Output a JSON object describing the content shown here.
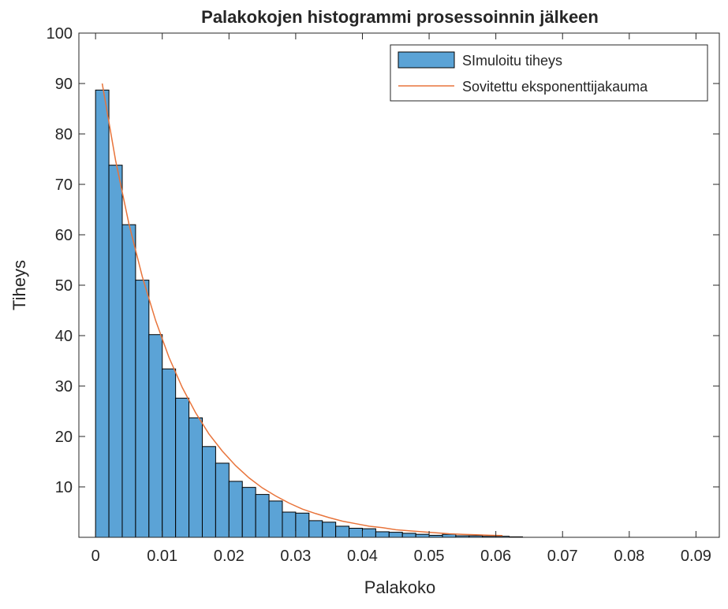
{
  "chart_data": {
    "type": "bar",
    "title": "Palakokojen histogrammi prosessoinnin jälkeen",
    "xlabel": "Palakoko",
    "ylabel": "Tiheys",
    "xlim": [
      -0.0025,
      0.0935
    ],
    "ylim": [
      0,
      100
    ],
    "bin_width": 0.002,
    "x_tick_labels": [
      "0",
      "0.01",
      "0.02",
      "0.03",
      "0.04",
      "0.05",
      "0.06",
      "0.07",
      "0.08",
      "0.09"
    ],
    "x_tick_values": [
      0,
      0.01,
      0.02,
      0.03,
      0.04,
      0.05,
      0.06,
      0.07,
      0.08,
      0.09
    ],
    "y_tick_labels": [
      "10",
      "20",
      "30",
      "40",
      "50",
      "60",
      "70",
      "80",
      "90",
      "100"
    ],
    "y_tick_values": [
      10,
      20,
      30,
      40,
      50,
      60,
      70,
      80,
      90,
      100
    ],
    "grid": false,
    "legend_position": "top-right",
    "series": [
      {
        "name": "SImuloitu tiheys",
        "kind": "histogram",
        "bin_edges": [
          0,
          0.002,
          0.004,
          0.006,
          0.008,
          0.01,
          0.012,
          0.014,
          0.016,
          0.018,
          0.02,
          0.022,
          0.024,
          0.026,
          0.028,
          0.03,
          0.032,
          0.034,
          0.036,
          0.038,
          0.04,
          0.042,
          0.044,
          0.046,
          0.048,
          0.05,
          0.052,
          0.054,
          0.056,
          0.058,
          0.06,
          0.062,
          0.064
        ],
        "values": [
          88.7,
          73.8,
          62.0,
          51.0,
          40.2,
          33.4,
          27.6,
          23.7,
          18.0,
          14.7,
          11.1,
          9.9,
          8.5,
          7.2,
          5.0,
          4.8,
          3.3,
          3.0,
          2.2,
          1.8,
          1.7,
          1.1,
          1.0,
          0.8,
          0.6,
          0.4,
          0.6,
          0.3,
          0.3,
          0.2,
          0.2,
          0.1
        ],
        "color": "#5ba3d6",
        "edge_color": "#000000"
      },
      {
        "name": "Sovitettu  eksponenttijakauma",
        "kind": "line",
        "x": [
          0.001,
          0.003,
          0.005,
          0.007,
          0.009,
          0.011,
          0.013,
          0.015,
          0.017,
          0.019,
          0.021,
          0.023,
          0.025,
          0.027,
          0.029,
          0.031,
          0.033,
          0.035,
          0.037,
          0.039,
          0.041,
          0.043,
          0.045,
          0.047,
          0.049,
          0.051,
          0.053,
          0.055,
          0.057,
          0.059,
          0.061
        ],
        "y": [
          90.0,
          74.8,
          62.2,
          51.7,
          43.0,
          35.7,
          29.7,
          24.7,
          20.5,
          17.1,
          14.2,
          11.8,
          9.8,
          8.2,
          6.8,
          5.6,
          4.7,
          3.9,
          3.2,
          2.7,
          2.2,
          1.9,
          1.5,
          1.3,
          1.1,
          0.9,
          0.7,
          0.6,
          0.5,
          0.4,
          0.35
        ],
        "color": "#e8743b"
      }
    ]
  }
}
